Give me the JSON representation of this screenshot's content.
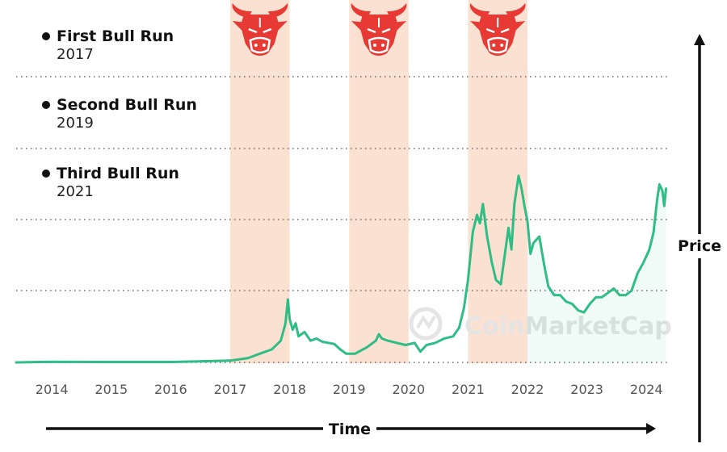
{
  "legend": [
    {
      "name": "First Bull Run",
      "year": "2017"
    },
    {
      "name": "Second Bull Run",
      "year": "2019"
    },
    {
      "name": "Third Bull Run",
      "year": "2021"
    }
  ],
  "watermark": "CoinMarketCap",
  "colors": {
    "line": "#2ebd85",
    "band": "#fbe1d2",
    "bull": "#e83a34",
    "grid": "#666666",
    "axis": "#111111"
  },
  "chart_data": {
    "type": "line",
    "title": "",
    "xlabel": "Time",
    "ylabel": "Price",
    "x_ticks": [
      "2014",
      "2015",
      "2016",
      "2017",
      "2018",
      "2019",
      "2020",
      "2021",
      "2022",
      "2023",
      "2024"
    ],
    "xlim": [
      2013.4,
      2024.35
    ],
    "ylim": [
      0,
      1
    ],
    "grid": "horizontal dotted",
    "y_units": "relative price (no scale printed)",
    "bull_run_periods": [
      {
        "label": "First Bull Run",
        "start": 2017.0,
        "end": 2018.0
      },
      {
        "label": "Second Bull Run",
        "start": 2019.0,
        "end": 2020.0
      },
      {
        "label": "Third Bull Run",
        "start": 2021.0,
        "end": 2022.0
      }
    ],
    "series": [
      {
        "points": [
          [
            2013.4,
            0.0
          ],
          [
            2014.0,
            0.003
          ],
          [
            2015.0,
            0.002
          ],
          [
            2016.0,
            0.002
          ],
          [
            2017.0,
            0.008
          ],
          [
            2017.3,
            0.02
          ],
          [
            2017.5,
            0.04
          ],
          [
            2017.7,
            0.06
          ],
          [
            2017.85,
            0.1
          ],
          [
            2017.93,
            0.18
          ],
          [
            2017.97,
            0.29
          ],
          [
            2018.0,
            0.2
          ],
          [
            2018.05,
            0.15
          ],
          [
            2018.1,
            0.18
          ],
          [
            2018.15,
            0.12
          ],
          [
            2018.25,
            0.14
          ],
          [
            2018.35,
            0.1
          ],
          [
            2018.45,
            0.11
          ],
          [
            2018.55,
            0.095
          ],
          [
            2018.65,
            0.09
          ],
          [
            2018.75,
            0.085
          ],
          [
            2018.85,
            0.06
          ],
          [
            2018.95,
            0.04
          ],
          [
            2019.1,
            0.04
          ],
          [
            2019.3,
            0.07
          ],
          [
            2019.45,
            0.1
          ],
          [
            2019.5,
            0.13
          ],
          [
            2019.55,
            0.11
          ],
          [
            2019.65,
            0.1
          ],
          [
            2019.8,
            0.09
          ],
          [
            2019.95,
            0.08
          ],
          [
            2020.1,
            0.09
          ],
          [
            2020.2,
            0.05
          ],
          [
            2020.3,
            0.08
          ],
          [
            2020.45,
            0.09
          ],
          [
            2020.6,
            0.11
          ],
          [
            2020.75,
            0.12
          ],
          [
            2020.85,
            0.16
          ],
          [
            2020.93,
            0.25
          ],
          [
            2021.0,
            0.38
          ],
          [
            2021.08,
            0.6
          ],
          [
            2021.15,
            0.68
          ],
          [
            2021.2,
            0.64
          ],
          [
            2021.25,
            0.73
          ],
          [
            2021.32,
            0.58
          ],
          [
            2021.4,
            0.46
          ],
          [
            2021.47,
            0.38
          ],
          [
            2021.55,
            0.36
          ],
          [
            2021.62,
            0.5
          ],
          [
            2021.68,
            0.62
          ],
          [
            2021.73,
            0.52
          ],
          [
            2021.78,
            0.73
          ],
          [
            2021.85,
            0.86
          ],
          [
            2021.9,
            0.8
          ],
          [
            2021.95,
            0.72
          ],
          [
            2022.0,
            0.65
          ],
          [
            2022.05,
            0.5
          ],
          [
            2022.1,
            0.55
          ],
          [
            2022.2,
            0.58
          ],
          [
            2022.28,
            0.45
          ],
          [
            2022.35,
            0.35
          ],
          [
            2022.45,
            0.31
          ],
          [
            2022.55,
            0.31
          ],
          [
            2022.65,
            0.28
          ],
          [
            2022.75,
            0.27
          ],
          [
            2022.85,
            0.24
          ],
          [
            2022.95,
            0.23
          ],
          [
            2023.05,
            0.27
          ],
          [
            2023.15,
            0.3
          ],
          [
            2023.25,
            0.3
          ],
          [
            2023.35,
            0.32
          ],
          [
            2023.45,
            0.34
          ],
          [
            2023.55,
            0.31
          ],
          [
            2023.65,
            0.31
          ],
          [
            2023.75,
            0.33
          ],
          [
            2023.85,
            0.41
          ],
          [
            2023.95,
            0.46
          ],
          [
            2024.05,
            0.52
          ],
          [
            2024.12,
            0.6
          ],
          [
            2024.18,
            0.75
          ],
          [
            2024.22,
            0.82
          ],
          [
            2024.27,
            0.79
          ],
          [
            2024.3,
            0.72
          ],
          [
            2024.33,
            0.8
          ]
        ]
      }
    ]
  }
}
